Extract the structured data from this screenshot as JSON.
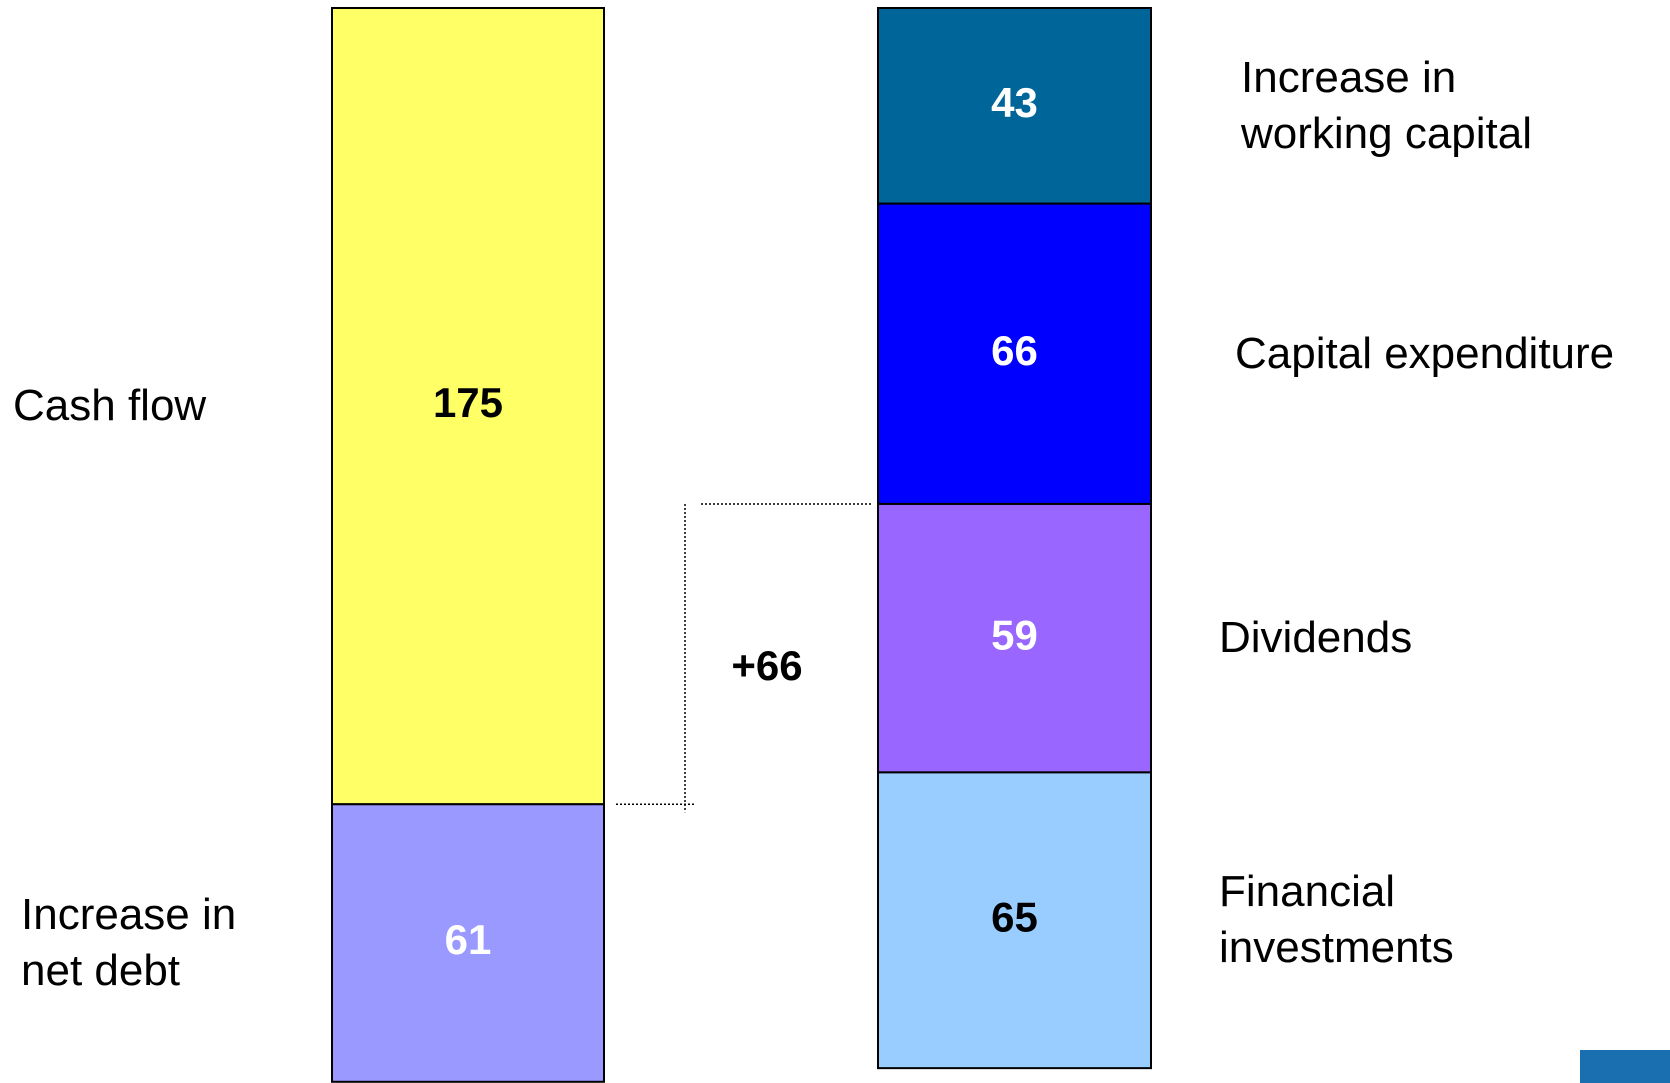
{
  "chart_data": {
    "type": "stacked_column",
    "columns": [
      {
        "segments": [
          {
            "name": "Cash flow",
            "value": 175,
            "color": "#ffff66",
            "label_color": "#000000"
          },
          {
            "name": "Increase in net debt",
            "value": 61,
            "color": "#9999ff",
            "label_color": "#ffffff"
          }
        ]
      },
      {
        "segments": [
          {
            "name": "Increase in working capital",
            "value": 43,
            "color": "#006699",
            "label_color": "#ffffff"
          },
          {
            "name": "Capital expenditure",
            "value": 66,
            "color": "#0000ff",
            "label_color": "#ffffff"
          },
          {
            "name": "Dividends",
            "value": 59,
            "color": "#9966ff",
            "label_color": "#ffffff"
          },
          {
            "name": "Financial investments",
            "value": 65,
            "color": "#99ccff",
            "label_color": "#000000"
          }
        ]
      }
    ],
    "annotation": "+66"
  }
}
